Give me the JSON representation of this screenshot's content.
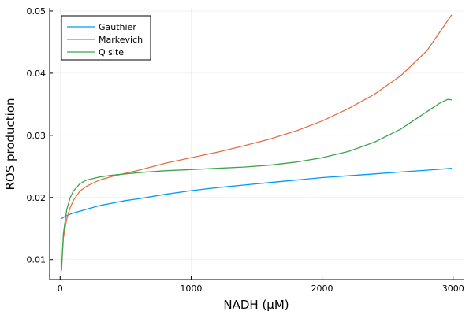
{
  "chart_data": {
    "type": "line",
    "title": "",
    "xlabel": "NADH (μM)",
    "ylabel": "ROS production",
    "xlim": [
      -80,
      3080
    ],
    "ylim": [
      0.0068,
      0.0505
    ],
    "xticks": [
      0,
      1000,
      2000,
      3000
    ],
    "xtick_labels": [
      "0",
      "1000",
      "2000",
      "3000"
    ],
    "yticks": [
      0.01,
      0.02,
      0.03,
      0.04,
      0.05
    ],
    "ytick_labels": [
      "0.01",
      "0.02",
      "0.03",
      "0.04",
      "0.05"
    ],
    "grid": true,
    "legend_position": "top-left",
    "series": [
      {
        "name": "Gauthier",
        "color": "#009AFA",
        "x": [
          10,
          50,
          100,
          150,
          200,
          300,
          400,
          500,
          600,
          800,
          1000,
          1200,
          1400,
          1600,
          1800,
          2000,
          2200,
          2400,
          2600,
          2800,
          2990
        ],
        "y": [
          0.0166,
          0.0171,
          0.0175,
          0.0178,
          0.0181,
          0.0187,
          0.0191,
          0.0195,
          0.0198,
          0.0205,
          0.0211,
          0.0216,
          0.022,
          0.0224,
          0.0228,
          0.0232,
          0.0235,
          0.0238,
          0.0241,
          0.0244,
          0.0247
        ]
      },
      {
        "name": "Markevich",
        "color": "#E36F47",
        "x": [
          10,
          25,
          50,
          75,
          100,
          150,
          200,
          300,
          400,
          500,
          600,
          800,
          1000,
          1200,
          1400,
          1600,
          1800,
          2000,
          2200,
          2400,
          2600,
          2800,
          2990
        ],
        "y": [
          0.0085,
          0.0135,
          0.0165,
          0.0183,
          0.0195,
          0.021,
          0.0218,
          0.0228,
          0.0234,
          0.0239,
          0.0244,
          0.0255,
          0.0264,
          0.0273,
          0.0283,
          0.0294,
          0.0307,
          0.0323,
          0.0343,
          0.0366,
          0.0396,
          0.0436,
          0.0494
        ]
      },
      {
        "name": "Q site",
        "color": "#3DA44D",
        "x": [
          10,
          25,
          50,
          75,
          100,
          150,
          200,
          300,
          400,
          500,
          600,
          800,
          1000,
          1200,
          1400,
          1600,
          1800,
          2000,
          2200,
          2400,
          2600,
          2800,
          2900,
          2960,
          2990
        ],
        "y": [
          0.0082,
          0.0142,
          0.018,
          0.0199,
          0.021,
          0.0222,
          0.0228,
          0.0233,
          0.0236,
          0.0238,
          0.024,
          0.0243,
          0.0245,
          0.0247,
          0.0249,
          0.0252,
          0.0257,
          0.0264,
          0.0274,
          0.0289,
          0.031,
          0.0338,
          0.0352,
          0.0358,
          0.0357
        ]
      }
    ]
  }
}
